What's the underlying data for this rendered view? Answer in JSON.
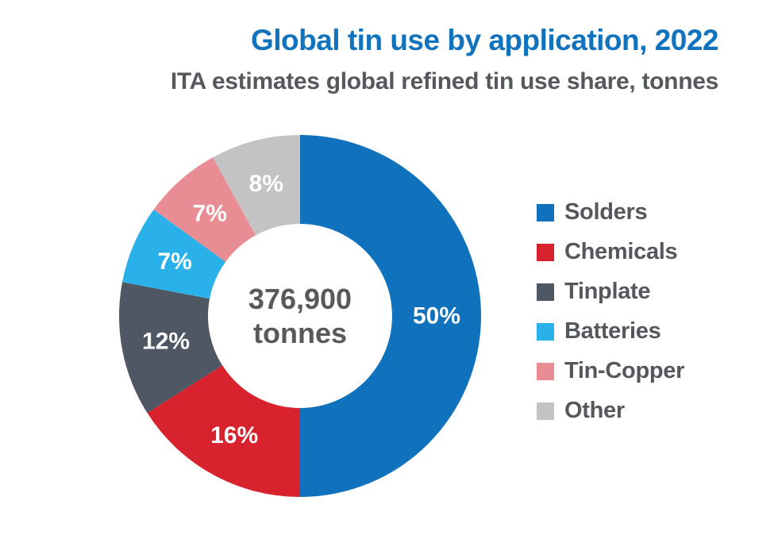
{
  "title": "Global tin use by application, 2022",
  "subtitle": "ITA estimates global refined tin use share, tonnes",
  "center_label": {
    "value": "376,900",
    "unit": "tonnes"
  },
  "chart_data": {
    "type": "pie",
    "donut": true,
    "title": "Global tin use by application, 2022",
    "subtitle": "ITA estimates global refined tin use share, tonnes",
    "center_text": "376,900 tonnes",
    "unit": "%",
    "categories": [
      "Solders",
      "Chemicals",
      "Tinplate",
      "Batteries",
      "Tin-Copper",
      "Other"
    ],
    "values": [
      50,
      16,
      12,
      7,
      7,
      8
    ],
    "labels": [
      "50%",
      "16%",
      "12%",
      "7%",
      "7%",
      "8%"
    ],
    "segment_colors": [
      "#1072BC",
      "#D8232F",
      "#4E5763",
      "#2AB1EA",
      "#E98D95",
      "#C3C3C3"
    ],
    "start_angle": "top",
    "direction": "clockwise",
    "legend_position": "right"
  },
  "legend": {
    "items": [
      {
        "label": "Solders",
        "color": "#1072BC"
      },
      {
        "label": "Chemicals",
        "color": "#D8232F"
      },
      {
        "label": "Tinplate",
        "color": "#4E5763"
      },
      {
        "label": "Batteries",
        "color": "#2AB1EA"
      },
      {
        "label": "Tin-Copper",
        "color": "#E98D95"
      },
      {
        "label": "Other",
        "color": "#C3C3C3"
      }
    ]
  },
  "colors": {
    "title": "#1173BD",
    "subtitle": "#55585D",
    "center_text": "#58595B",
    "background": "#FFFFFF"
  }
}
